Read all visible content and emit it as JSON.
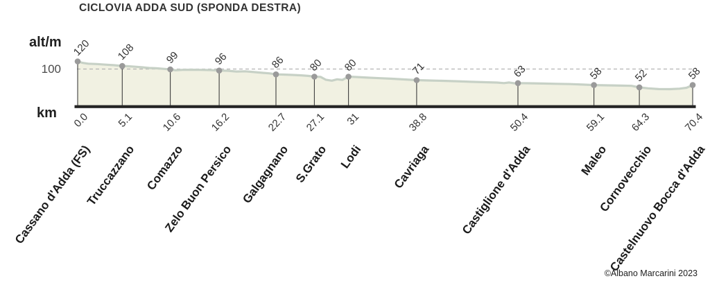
{
  "title": "CICLOVIA ADDA SUD (SPONDA DESTRA)",
  "axes": {
    "alt_axis_label": "alt/m",
    "km_axis_label": "km",
    "gridline_value": "100"
  },
  "credit": "©Albano Marcarini 2023",
  "colors": {
    "area_fill": "#f1f1e2",
    "profile_line": "#c7d1c6",
    "dot": "#9a9a9a",
    "tick_line": "#3d3d3d",
    "baseline": "#242424",
    "dashed_gridline": "#b3b3b3",
    "label_text": "#333333",
    "name_text": "#1b1b1b"
  },
  "chart_data": {
    "type": "area",
    "title": "CICLOVIA ADDA SUD (SPONDA DESTRA)",
    "xlabel": "km",
    "ylabel": "alt/m",
    "x_range": [
      0,
      70.4
    ],
    "gridline_alt": 100,
    "grid": "single dashed horizontal line at 100 m",
    "legend": "none",
    "points": [
      {
        "km": 0.0,
        "km_label": "0.0",
        "alt": 120,
        "alt_label": "120",
        "name": "Cassano d'Adda (FS)"
      },
      {
        "km": 5.1,
        "km_label": "5.1",
        "alt": 108,
        "alt_label": "108",
        "name": "Truccazzano"
      },
      {
        "km": 10.6,
        "km_label": "10.6",
        "alt": 99,
        "alt_label": "99",
        "name": "Comazzo"
      },
      {
        "km": 16.2,
        "km_label": "16.2",
        "alt": 96,
        "alt_label": "96",
        "name": "Zelo Buon Persico"
      },
      {
        "km": 22.7,
        "km_label": "22.7",
        "alt": 86,
        "alt_label": "86",
        "name": "Galgagnano"
      },
      {
        "km": 27.1,
        "km_label": "27.1",
        "alt": 80,
        "alt_label": "80",
        "name": "S.Grato"
      },
      {
        "km": 31,
        "km_label": "31",
        "alt": 80,
        "alt_label": "80",
        "name": "Lodi"
      },
      {
        "km": 38.8,
        "km_label": "38.8",
        "alt": 71,
        "alt_label": "71",
        "name": "Cavriaga"
      },
      {
        "km": 50.4,
        "km_label": "50.4",
        "alt": 63,
        "alt_label": "63",
        "name": "Castiglione d'Adda"
      },
      {
        "km": 59.1,
        "km_label": "59.1",
        "alt": 58,
        "alt_label": "58",
        "name": "Maleo"
      },
      {
        "km": 64.3,
        "km_label": "64.3",
        "alt": 52,
        "alt_label": "52",
        "name": "Cornovecchio"
      },
      {
        "km": 70.4,
        "km_label": "70.4",
        "alt": 58,
        "alt_label": "58",
        "name": "Castelnuovo Bocca d'Adda"
      }
    ],
    "trace": [
      [
        0,
        120
      ],
      [
        0.5,
        116.5
      ],
      [
        1.2,
        114
      ],
      [
        2.2,
        113
      ],
      [
        3.2,
        111.5
      ],
      [
        4.2,
        110
      ],
      [
        5.1,
        108
      ],
      [
        5.8,
        107.2
      ],
      [
        6.6,
        106
      ],
      [
        7.4,
        104.5
      ],
      [
        8.2,
        102.8
      ],
      [
        9,
        102
      ],
      [
        9.8,
        100.5
      ],
      [
        10.6,
        99
      ],
      [
        11.2,
        96.8
      ],
      [
        12,
        97.8
      ],
      [
        13,
        98.2
      ],
      [
        14,
        97.8
      ],
      [
        15.2,
        97.2
      ],
      [
        16.2,
        96
      ],
      [
        17.2,
        95.5
      ],
      [
        18.2,
        93.5
      ],
      [
        19.2,
        94
      ],
      [
        20.2,
        92
      ],
      [
        21.2,
        90
      ],
      [
        22,
        88.5
      ],
      [
        22.7,
        86
      ],
      [
        23.6,
        85.5
      ],
      [
        24.6,
        84.5
      ],
      [
        25.6,
        83.5
      ],
      [
        26.4,
        82
      ],
      [
        27.1,
        80
      ],
      [
        27.8,
        79.5
      ],
      [
        28.4,
        72
      ],
      [
        29.1,
        69.5
      ],
      [
        29.7,
        73
      ],
      [
        30.3,
        71.5
      ],
      [
        31,
        80
      ],
      [
        31.9,
        79
      ],
      [
        33.2,
        77.5
      ],
      [
        34.6,
        76
      ],
      [
        36,
        74.5
      ],
      [
        37.4,
        72.8
      ],
      [
        38.8,
        71
      ],
      [
        40.2,
        70
      ],
      [
        41.8,
        69
      ],
      [
        43.4,
        68
      ],
      [
        45,
        66.5
      ],
      [
        46.6,
        65.5
      ],
      [
        48,
        64.5
      ],
      [
        48.8,
        63
      ],
      [
        49.4,
        64.8
      ],
      [
        50,
        62.5
      ],
      [
        50.4,
        63
      ],
      [
        51.6,
        62.8
      ],
      [
        53.2,
        62
      ],
      [
        54.8,
        61.3
      ],
      [
        56.4,
        60.5
      ],
      [
        57.8,
        59.3
      ],
      [
        59.1,
        58
      ],
      [
        60.6,
        57.3
      ],
      [
        62.2,
        56.5
      ],
      [
        63.4,
        56
      ],
      [
        64.3,
        52
      ],
      [
        65.3,
        49.5
      ],
      [
        66.5,
        47.5
      ],
      [
        67.8,
        47.2
      ],
      [
        68.9,
        48.5
      ],
      [
        69.7,
        51
      ],
      [
        70.4,
        58
      ]
    ]
  }
}
